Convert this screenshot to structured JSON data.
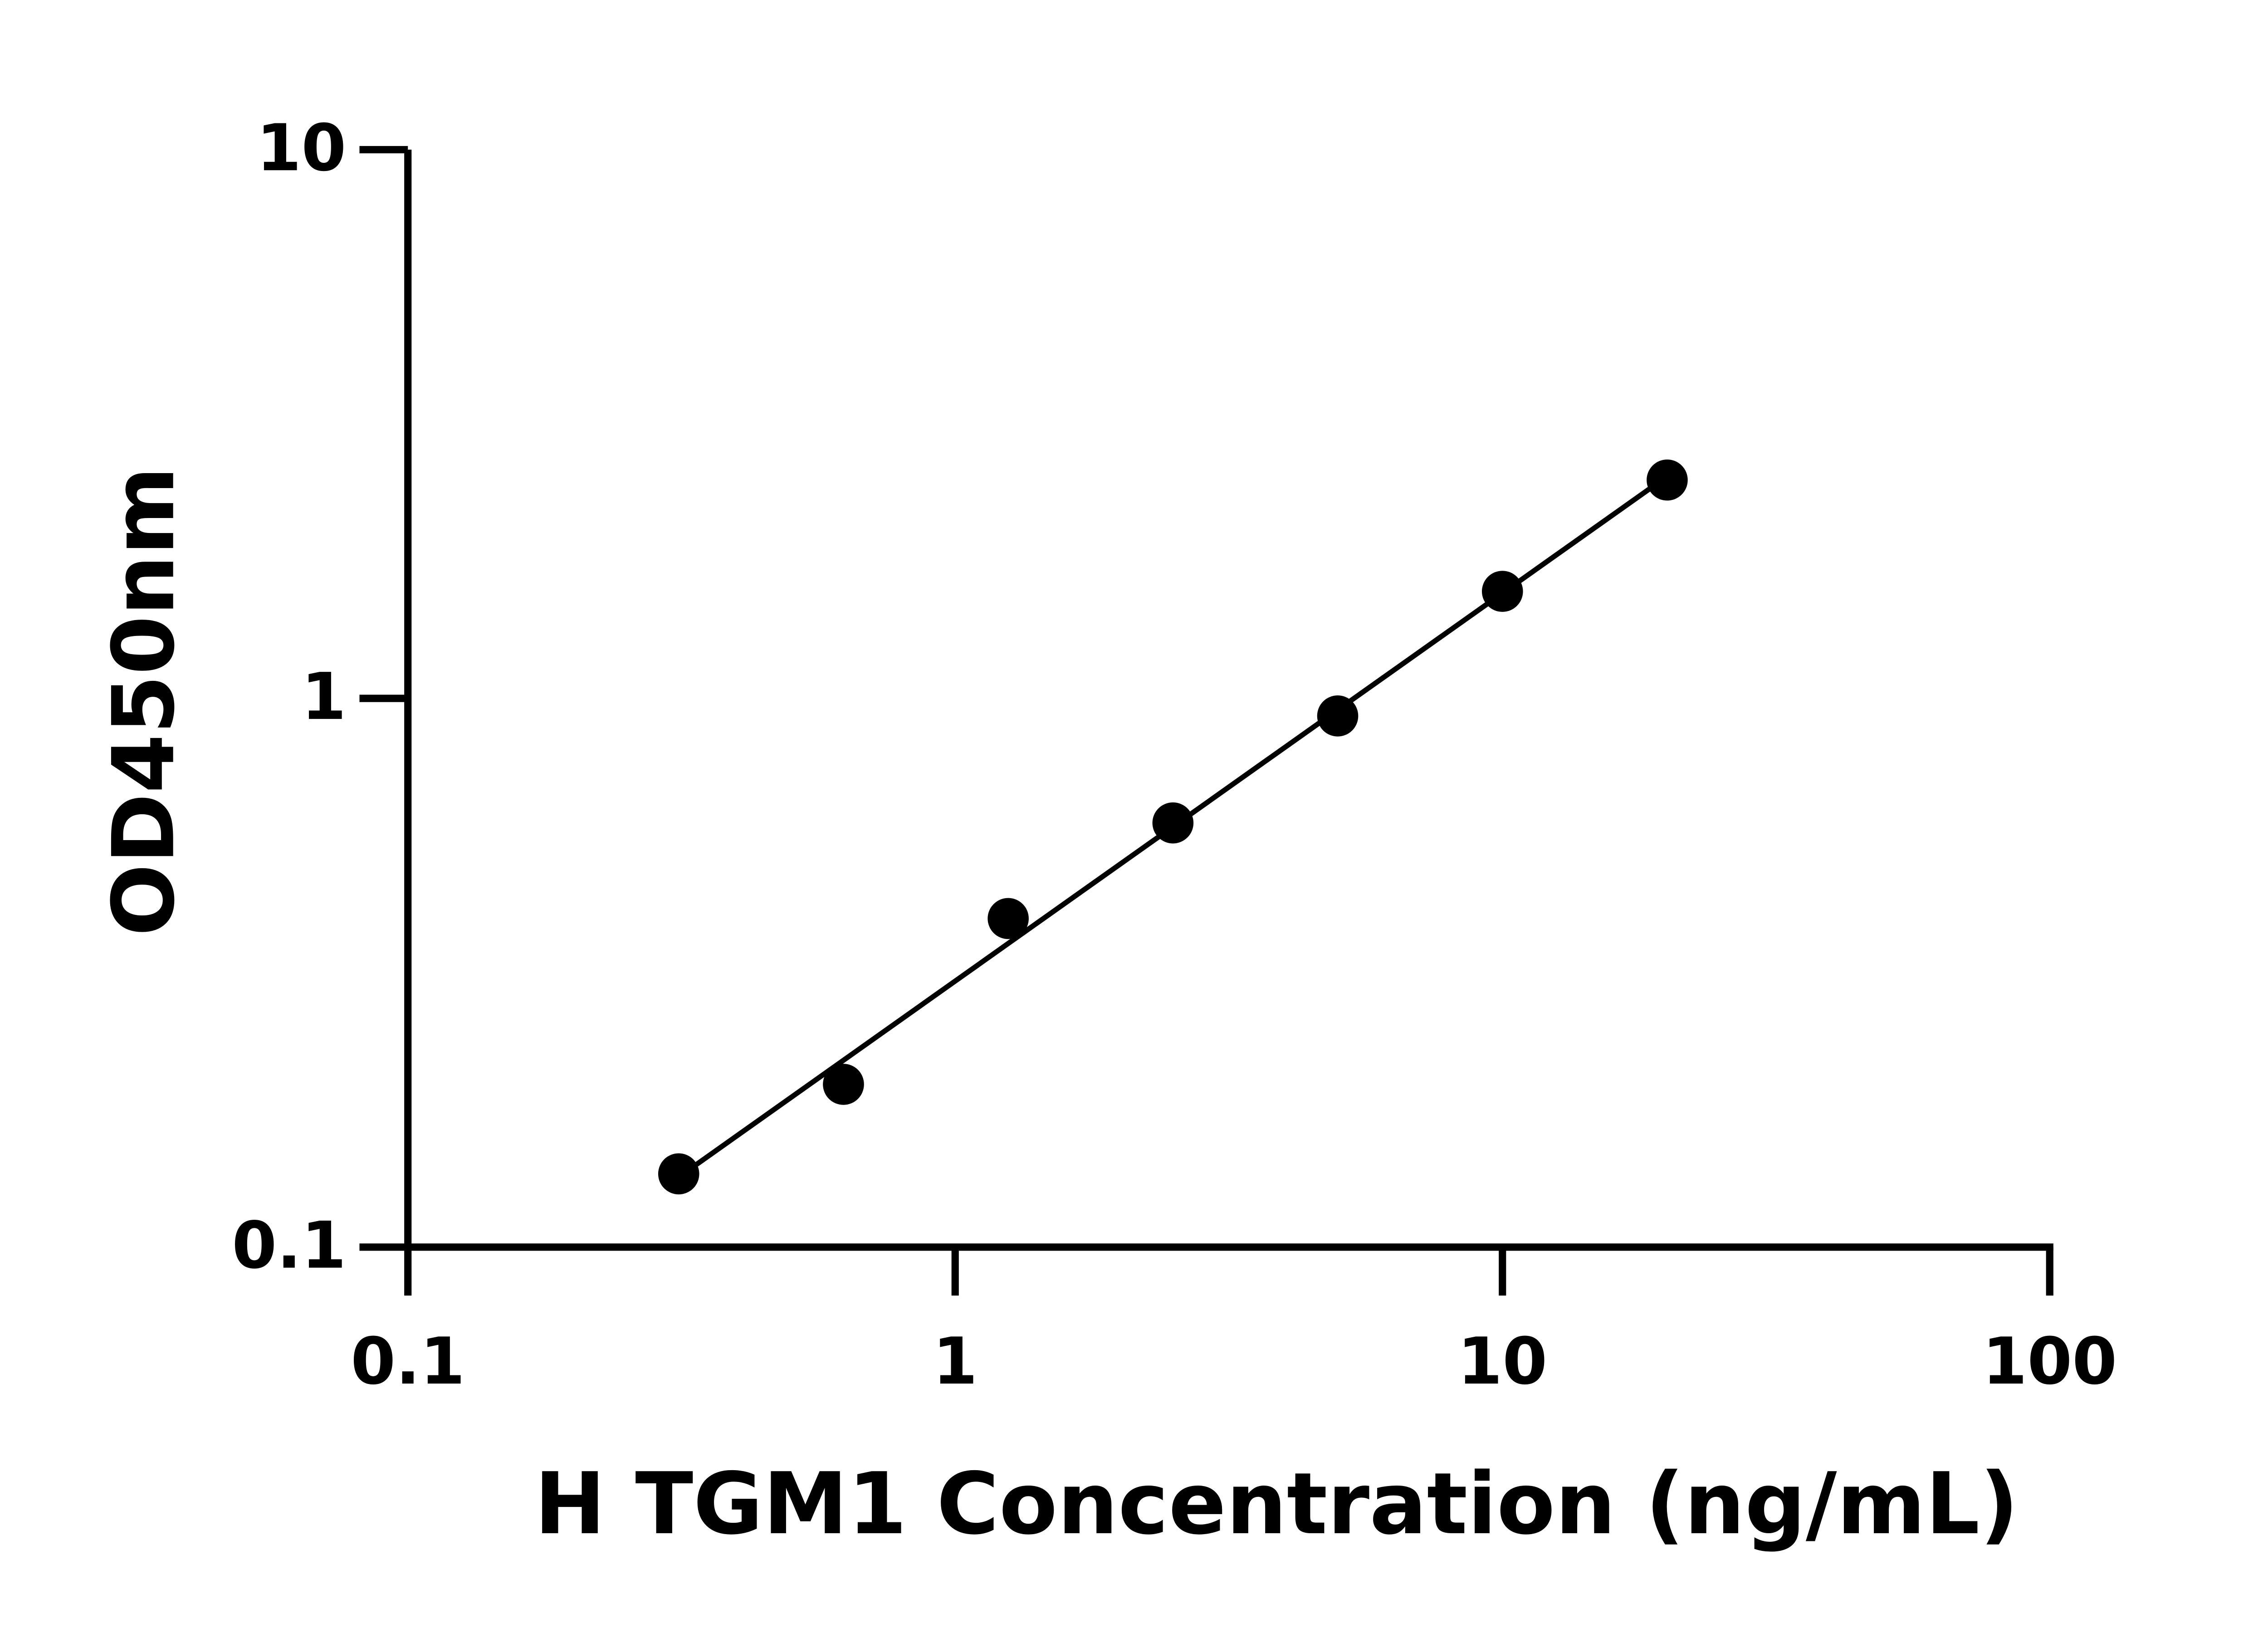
{
  "chart_data": {
    "type": "scatter",
    "title": "",
    "xlabel": "H TGM1 Concentration (ng/mL)",
    "ylabel": "OD450nm",
    "x_scale": "log",
    "y_scale": "log",
    "xlim": [
      0.1,
      100
    ],
    "ylim": [
      0.1,
      10
    ],
    "x_ticks": [
      "0.1",
      "1",
      "10",
      "100"
    ],
    "y_ticks": [
      "0.1",
      "1",
      "10"
    ],
    "grid": false,
    "fit_line": "linear regression in log-log space",
    "series": [
      {
        "x": [
          0.3125,
          0.625,
          1.25,
          2.5,
          5,
          10,
          20
        ],
        "y": [
          0.136,
          0.198,
          0.397,
          0.593,
          0.929,
          1.567,
          2.5
        ]
      }
    ],
    "colors": {
      "marker": "#000000",
      "line": "#000000",
      "axis": "#000000"
    }
  }
}
